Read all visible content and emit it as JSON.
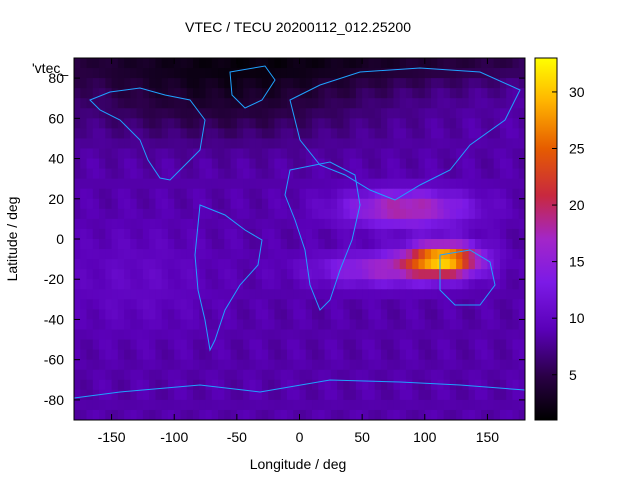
{
  "chart_data": {
    "type": "heatmap",
    "title": "VTEC / TECU 20200112_012.25200",
    "key_label": "'vtec_",
    "xlabel": "Longitude / deg",
    "ylabel": "Latitude / deg",
    "xlim": [
      -180,
      180
    ],
    "ylim": [
      -90,
      90
    ],
    "x_ticks": [
      -150,
      -100,
      -50,
      0,
      50,
      100,
      150
    ],
    "y_ticks": [
      -80,
      -60,
      -40,
      -20,
      0,
      20,
      40,
      60,
      80
    ],
    "colorbar": {
      "range": [
        1,
        33
      ],
      "ticks": [
        5,
        10,
        15,
        20,
        25,
        30
      ],
      "palette": [
        "#000000",
        "#2a0045",
        "#5a00b8",
        "#7c1ae6",
        "#a326c8",
        "#c8283f",
        "#e65c00",
        "#ffb400",
        "#ffff00"
      ]
    },
    "overlay": "coastlines",
    "coastline_color": "#1fa2ff",
    "grid": false,
    "features": [
      {
        "name": "equatorial_anomaly_max",
        "lon": 115,
        "lat": -10,
        "value": 33
      },
      {
        "name": "northern_crest",
        "lon": 90,
        "lat": 15,
        "value": 18
      },
      {
        "name": "polar_minimum",
        "lon": -120,
        "lat": 85,
        "value": 2
      }
    ]
  }
}
